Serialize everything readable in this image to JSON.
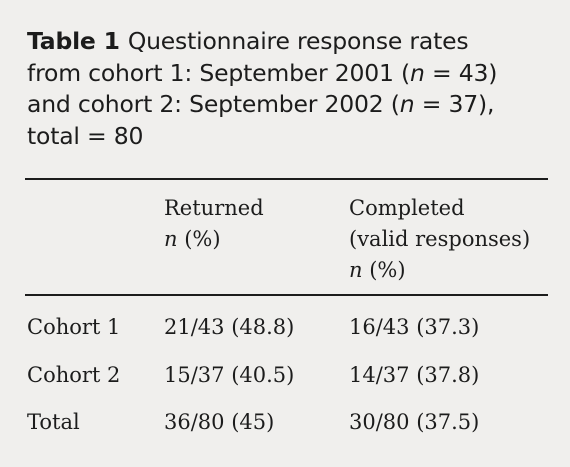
{
  "caption": {
    "label": "Table 1",
    "line1": "Questionnaire response rates",
    "line2_a": "from cohort 1: September 2001 (",
    "line2_n": "n",
    "line2_b": " = 43)",
    "line3_a": "and cohort 2: September 2002 (",
    "line3_n": "n",
    "line3_b": " = 37),",
    "line4": "total = 80"
  },
  "table": {
    "headers": {
      "returned": {
        "title": "Returned",
        "unit_n": "n",
        "unit_rest": " (%)"
      },
      "completed": {
        "title": "Completed",
        "subtitle": "(valid responses)",
        "unit_n": "n",
        "unit_rest": " (%)"
      }
    },
    "rows": [
      {
        "label": "Cohort 1",
        "returned": "21/43 (48.8)",
        "completed": "16/43 (37.3)"
      },
      {
        "label": "Cohort 2",
        "returned": "15/37 (40.5)",
        "completed": "14/37 (37.8)"
      },
      {
        "label": "Total",
        "returned": "36/80 (45)",
        "completed": "30/80 (37.5)"
      }
    ]
  }
}
